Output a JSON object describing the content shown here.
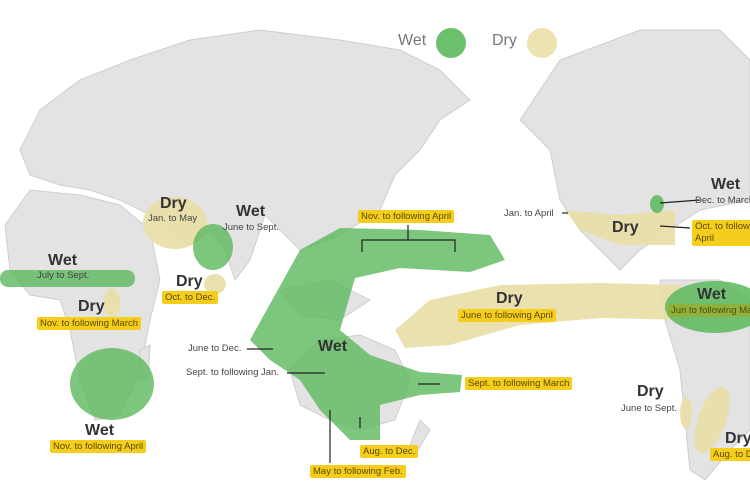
{
  "legend": [
    {
      "label": "Wet",
      "color": "#6cbf6c"
    },
    {
      "label": "Dry",
      "color": "#ede3b0"
    }
  ],
  "colors": {
    "land": "#e3e3e3",
    "wet": "#5cb85c",
    "dry": "#e8dea6",
    "highlight": "#f5cd1c"
  },
  "regions": [
    {
      "type": "Wet",
      "period": "July to Sept.",
      "place": "Sahel"
    },
    {
      "type": "Dry",
      "period": "Nov. to following March",
      "place": "East Africa"
    },
    {
      "type": "Wet",
      "period": "Nov. to following April",
      "place": "Southern Africa"
    },
    {
      "type": "Dry",
      "period": "Jan. to May",
      "place": "Central Asia"
    },
    {
      "type": "Wet",
      "period": "June to Sept.",
      "place": "India"
    },
    {
      "type": "Dry",
      "period": "Oct. to Dec.",
      "place": "Sri Lanka"
    },
    {
      "type": "Wet",
      "periods": [
        "Nov. to following April",
        "June to Dec.",
        "Sept. to following Jan.",
        "Sept. to following March",
        "Aug. to Dec.",
        "May to following Feb."
      ],
      "place": "Maritime Continent / Australia"
    },
    {
      "type": "Dry",
      "period": "June to following April",
      "place": "Central Pacific"
    },
    {
      "type": "Dry",
      "period": "Jan. to April",
      "period2": "Oct. to following April",
      "place": "Southern US"
    },
    {
      "type": "Wet",
      "period": "Dec. to March",
      "place": "Eastern US"
    },
    {
      "type": "Wet",
      "period": "Jun to following March",
      "place": "Northern South America"
    },
    {
      "type": "Dry",
      "period": "June to Sept.",
      "place": "Chile"
    },
    {
      "type": "Dry",
      "period": "Aug. to Dec.",
      "place": "Argentina"
    }
  ]
}
